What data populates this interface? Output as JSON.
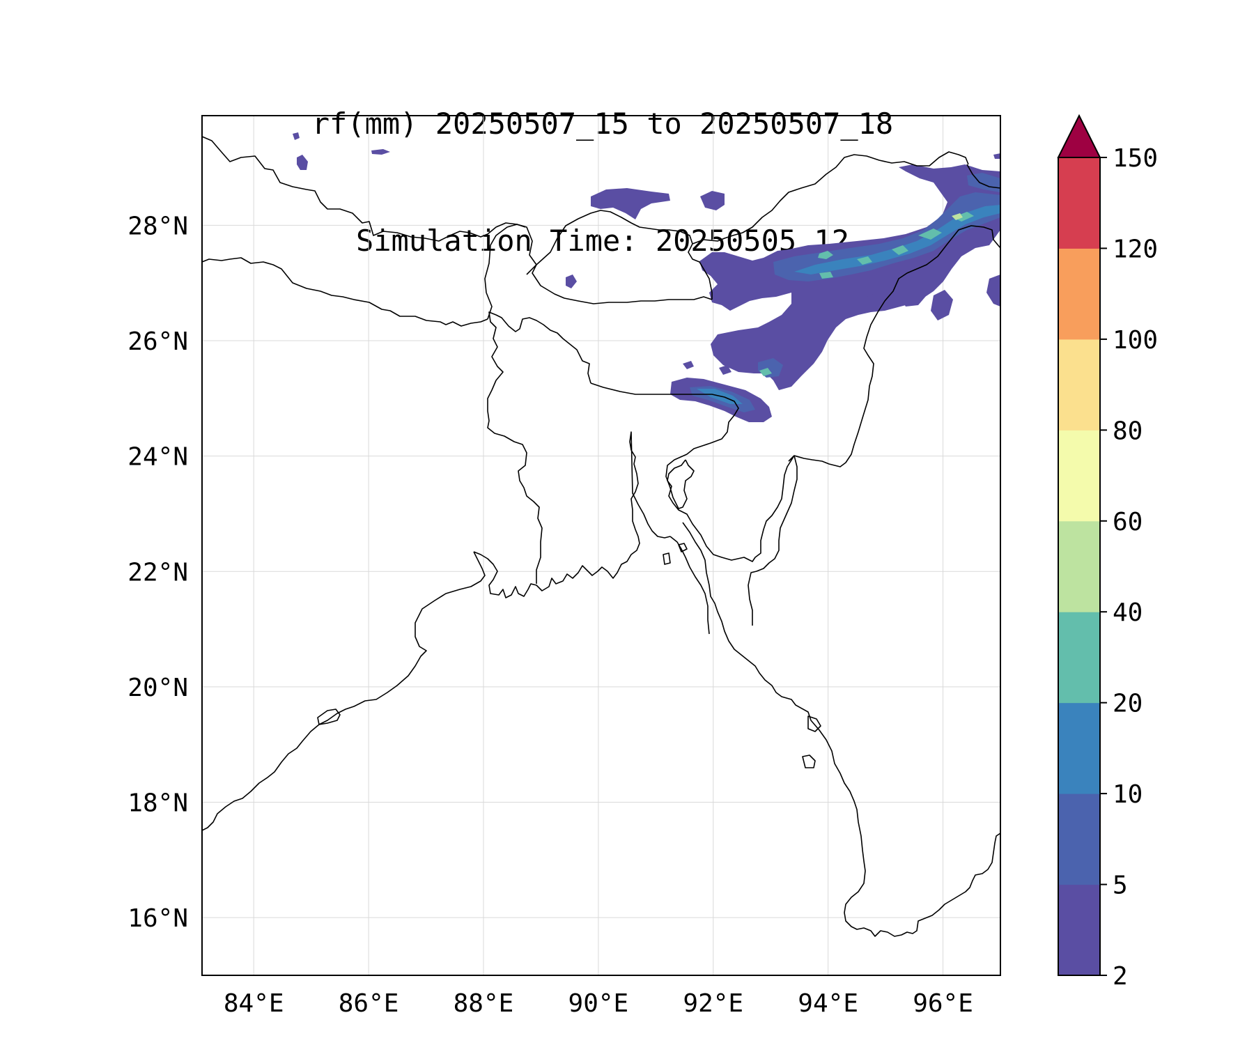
{
  "title": {
    "line1": "rf(mm) 20250507_15 to 20250507_18",
    "line2": "Simulation Time: 20250505_12"
  },
  "map": {
    "lon_range": [
      83.1,
      97.0
    ],
    "lat_range": [
      15.0,
      29.9
    ],
    "grid": true,
    "lon_ticks": [
      84,
      86,
      88,
      90,
      92,
      94,
      96
    ],
    "lat_ticks": [
      16,
      18,
      20,
      22,
      24,
      26,
      28
    ],
    "lon_tick_labels": [
      "84°E",
      "86°E",
      "88°E",
      "90°E",
      "92°E",
      "94°E",
      "96°E"
    ],
    "lat_tick_labels": [
      "16°N",
      "18°N",
      "20°N",
      "22°N",
      "24°N",
      "26°N",
      "28°N"
    ],
    "features": [
      "coastline",
      "country-borders"
    ]
  },
  "colorbar": {
    "levels": [
      2,
      5,
      10,
      20,
      40,
      60,
      80,
      100,
      120,
      150
    ],
    "tick_labels": [
      "2",
      "5",
      "10",
      "20",
      "40",
      "60",
      "80",
      "100",
      "120",
      "150"
    ],
    "colors": [
      "#5a4ea3",
      "#4b63ae",
      "#3a83bd",
      "#63beac",
      "#bde3a0",
      "#f4fbac",
      "#fbe08e",
      "#f89e5c",
      "#d63e50"
    ],
    "extend_color": "#9e0142",
    "extend": "max"
  }
}
